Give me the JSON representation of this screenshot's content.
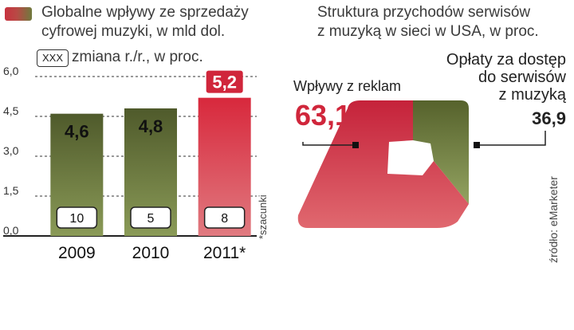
{
  "legend": {
    "line1": "Globalne wpływy ze sprzedaży",
    "line2": "cyfrowej muzyki, w mld dol.",
    "change_box": "XXX",
    "change_text": "zmiana r./r., w proc."
  },
  "footnote": "*szacunki",
  "right_title": {
    "line1": "Struktura przychodów serwisów",
    "line2": "z muzyką w sieci w USA, w proc."
  },
  "source": "źródło: eMarketer",
  "colors": {
    "green": "#6b7a3c",
    "red": "#d23a48",
    "gridline": "#333333"
  },
  "chart_data": [
    {
      "type": "bar",
      "title": "Globalne wpływy ze sprzedaży cyfrowej muzyki, w mld dol.",
      "categories": [
        "2009",
        "2010",
        "2011*"
      ],
      "values": [
        4.6,
        4.8,
        5.2
      ],
      "value_labels": [
        "4,6",
        "4,8",
        "5,2"
      ],
      "yoy_change_pct": [
        "10",
        "5",
        "8"
      ],
      "highlight": [
        false,
        false,
        true
      ],
      "yticks": [
        "0,0",
        "1,5",
        "3,0",
        "4,5",
        "6,0"
      ],
      "ylim": [
        0,
        6
      ]
    },
    {
      "type": "pie",
      "title": "Struktura przychodów serwisów z muzyką w sieci w USA, w proc.",
      "slices": [
        {
          "label_lines": [
            "Wpływy z reklam"
          ],
          "value": 63.1,
          "value_label": "63,1"
        },
        {
          "label_lines": [
            "Opłaty za dostęp",
            "do serwisów",
            "z muzyką"
          ],
          "value": 36.9,
          "value_label": "36,9"
        }
      ]
    }
  ]
}
